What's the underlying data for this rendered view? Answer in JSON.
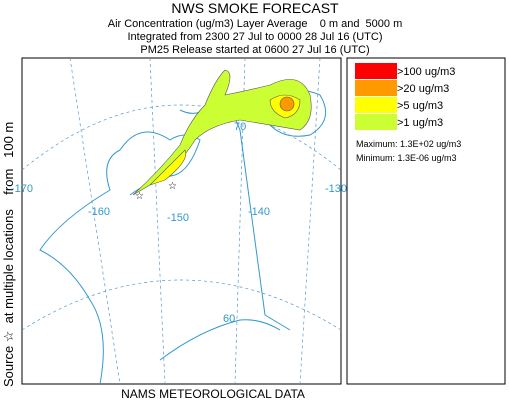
{
  "header": {
    "title": "NWS SMOKE FORECAST",
    "lines": [
      "Air Concentration (ug/m3) Layer Average    0 m and  5000 m",
      "Integrated from 2300 27 Jul to 0000 28 Jul 16 (UTC)",
      "PM25 Release started at 0600 27 Jul 16 (UTC)"
    ]
  },
  "side_label": "Source ☆  at multiple locations    from   100 m",
  "footer": "NAMS METEOROLOGICAL DATA",
  "map": {
    "labels": [
      "-170",
      "-160",
      "-150",
      "-140",
      "-130",
      "70",
      "60"
    ]
  },
  "legend": {
    "entries": [
      {
        "label": ">100 ug/m3",
        "color": "#ff0000"
      },
      {
        "label": ">20 ug/m3",
        "color": "#ff9900"
      },
      {
        "label": ">5 ug/m3",
        "color": "#ffff00"
      },
      {
        "label": ">1 ug/m3",
        "color": "#ccff33"
      }
    ],
    "maximum": "Maximum: 1.3E+02 ug/m3",
    "minimum": "Minimum: 1.3E-06 ug/m3"
  }
}
